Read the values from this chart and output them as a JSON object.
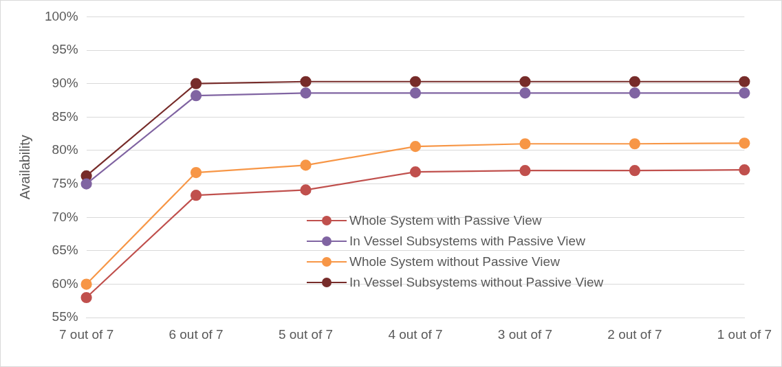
{
  "chart_data": {
    "type": "line",
    "ylabel": "Availability",
    "categories": [
      "7 out of 7",
      "6 out of 7",
      "5 out of 7",
      "4 out of 7",
      "3 out of 7",
      "2 out of 7",
      "1 out of 7"
    ],
    "series": [
      {
        "name": "Whole System with Passive View",
        "color": "#c0504d",
        "values": [
          58.0,
          73.3,
          74.1,
          76.8,
          77.0,
          77.0,
          77.1
        ]
      },
      {
        "name": "In Vessel Subsystems with Passive View",
        "color": "#8064a2",
        "values": [
          75.0,
          88.2,
          88.6,
          88.6,
          88.6,
          88.6,
          88.6
        ]
      },
      {
        "name": "Whole System without Passive View",
        "color": "#f79646",
        "values": [
          60.0,
          76.7,
          77.8,
          80.6,
          81.0,
          81.0,
          81.1
        ]
      },
      {
        "name": "In Vessel Subsystems without Passive View",
        "color": "#772c2a",
        "values": [
          76.2,
          90.0,
          90.3,
          90.3,
          90.3,
          90.3,
          90.3
        ]
      }
    ],
    "ylim": [
      55,
      100
    ],
    "yticks": [
      {
        "value": 55,
        "label": "55%"
      },
      {
        "value": 60,
        "label": "60%"
      },
      {
        "value": 65,
        "label": "65%"
      },
      {
        "value": 70,
        "label": "70%"
      },
      {
        "value": 75,
        "label": "75%"
      },
      {
        "value": 80,
        "label": "80%"
      },
      {
        "value": 85,
        "label": "85%"
      },
      {
        "value": 90,
        "label": "90%"
      },
      {
        "value": 95,
        "label": "95%"
      },
      {
        "value": 100,
        "label": "100%"
      }
    ],
    "grid": "y",
    "legend": "bottom",
    "marker": "circle",
    "line_style": "solid"
  }
}
